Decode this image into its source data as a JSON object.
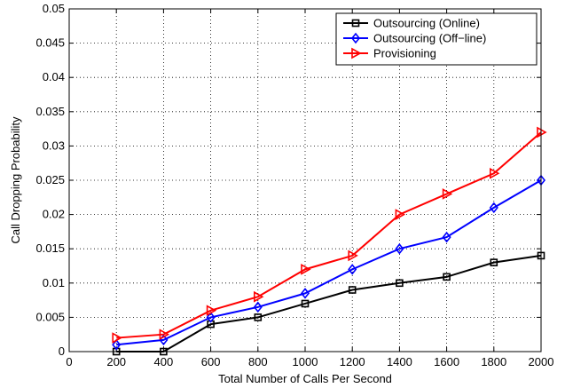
{
  "chart_data": {
    "type": "line",
    "xlabel": "Total Number of Calls Per Second",
    "ylabel": "Call Dropping Probability",
    "xlim": [
      0,
      2000
    ],
    "ylim": [
      0,
      0.05
    ],
    "xticks": [
      "0",
      "200",
      "400",
      "600",
      "800",
      "1000",
      "1200",
      "1400",
      "1600",
      "1800",
      "2000"
    ],
    "yticks": [
      "0",
      "0.005",
      "0.01",
      "0.015",
      "0.02",
      "0.025",
      "0.03",
      "0.035",
      "0.04",
      "0.045",
      "0.05"
    ],
    "grid": "dotted",
    "legend_position": "top-right",
    "x": [
      200,
      400,
      600,
      800,
      1000,
      1200,
      1400,
      1600,
      1800,
      2000
    ],
    "series": [
      {
        "name": "Outsourcing (Online)",
        "color": "#000000",
        "marker": "square",
        "values": [
          0,
          0,
          0.004,
          0.005,
          0.007,
          0.009,
          0.01,
          0.0109,
          0.013,
          0.014
        ]
      },
      {
        "name": "Outsourcing (Off−line)",
        "color": "#0000ff",
        "marker": "diamond",
        "values": [
          0.001,
          0.0017,
          0.005,
          0.0065,
          0.0085,
          0.012,
          0.015,
          0.0167,
          0.021,
          0.025
        ]
      },
      {
        "name": "Provisioning",
        "color": "#ff0000",
        "marker": "triangle-right",
        "values": [
          0.002,
          0.0025,
          0.006,
          0.008,
          0.012,
          0.014,
          0.02,
          0.023,
          0.026,
          0.032
        ]
      }
    ]
  }
}
